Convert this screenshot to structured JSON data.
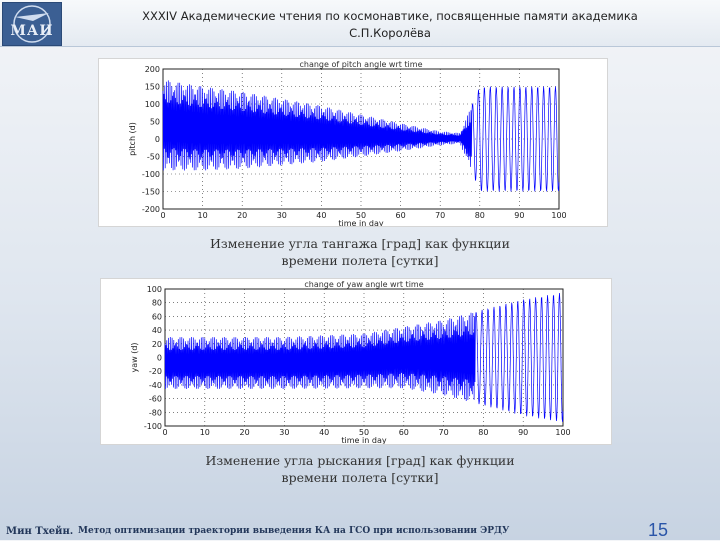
{
  "header": {
    "logo_text": "МАИ",
    "title_line1": "XXXIV Академические чтения по космонавтике, посвященные памяти академика",
    "title_line2": "С.П.Королёва"
  },
  "colors": {
    "signal": "#0000ff",
    "grid": "#333333",
    "page_number": "#2a55a8"
  },
  "chart_data": [
    {
      "type": "line",
      "title": "change of pitch angle wrt time",
      "xlabel": "time in day",
      "ylabel": "pitch (d)",
      "xlim": [
        0,
        100
      ],
      "ylim": [
        -200,
        200
      ],
      "xticks": [
        0,
        10,
        20,
        30,
        40,
        50,
        60,
        70,
        80,
        90,
        100
      ],
      "yticks": [
        200,
        150,
        100,
        50,
        0,
        -50,
        -100,
        -150,
        -200
      ],
      "ytick_labels": [
        "200",
        "150",
        "100",
        "50",
        "0",
        "-50",
        "-100",
        "-150",
        "-200"
      ],
      "grid": true,
      "series": [
        {
          "name": "pitch angle",
          "description": "dense oscillation",
          "envelope_x": [
            0,
            10,
            20,
            30,
            40,
            50,
            60,
            70,
            75,
            80,
            85,
            90,
            95,
            100
          ],
          "envelope_amplitude": [
            130,
            120,
            110,
            95,
            80,
            60,
            40,
            20,
            15,
            150,
            150,
            150,
            150,
            150
          ],
          "envelope_center": [
            40,
            30,
            25,
            20,
            15,
            10,
            5,
            2,
            2,
            0,
            0,
            0,
            0,
            0
          ]
        }
      ]
    },
    {
      "type": "line",
      "title": "change of yaw angle wrt time",
      "xlabel": "time in day",
      "ylabel": "yaw (d)",
      "xlim": [
        0,
        100
      ],
      "ylim": [
        -100,
        100
      ],
      "xticks": [
        0,
        10,
        20,
        30,
        40,
        50,
        60,
        70,
        80,
        90,
        100
      ],
      "yticks": [
        100,
        80,
        60,
        40,
        20,
        0,
        -20,
        -40,
        -60,
        -80,
        -100
      ],
      "ytick_labels": [
        "100",
        "80",
        "60",
        "40",
        "20",
        "0",
        "-20",
        "-40",
        "-60",
        "-80",
        "-100"
      ],
      "grid": true,
      "series": [
        {
          "name": "yaw angle",
          "description": "dense oscillation",
          "envelope_x": [
            0,
            30,
            50,
            60,
            70,
            80,
            90,
            100
          ],
          "envelope_amplitude": [
            38,
            38,
            40,
            45,
            55,
            70,
            85,
            95
          ],
          "envelope_center": [
            -8,
            -8,
            -5,
            0,
            0,
            0,
            0,
            0
          ]
        }
      ]
    }
  ],
  "captions": {
    "chart1_line1": "Изменение угла тангажа [град] как функции",
    "chart1_line2": "времени полета [сутки]",
    "chart2_line1": "Изменение угла рыскания [град] как функции",
    "chart2_line2": "времени полета [сутки]"
  },
  "footer": {
    "author": "Мин Тхейн.",
    "topic": "Метод оптимизации траектории выведения КА на ГСО при использовании ЭРДУ",
    "page_number": "15"
  }
}
